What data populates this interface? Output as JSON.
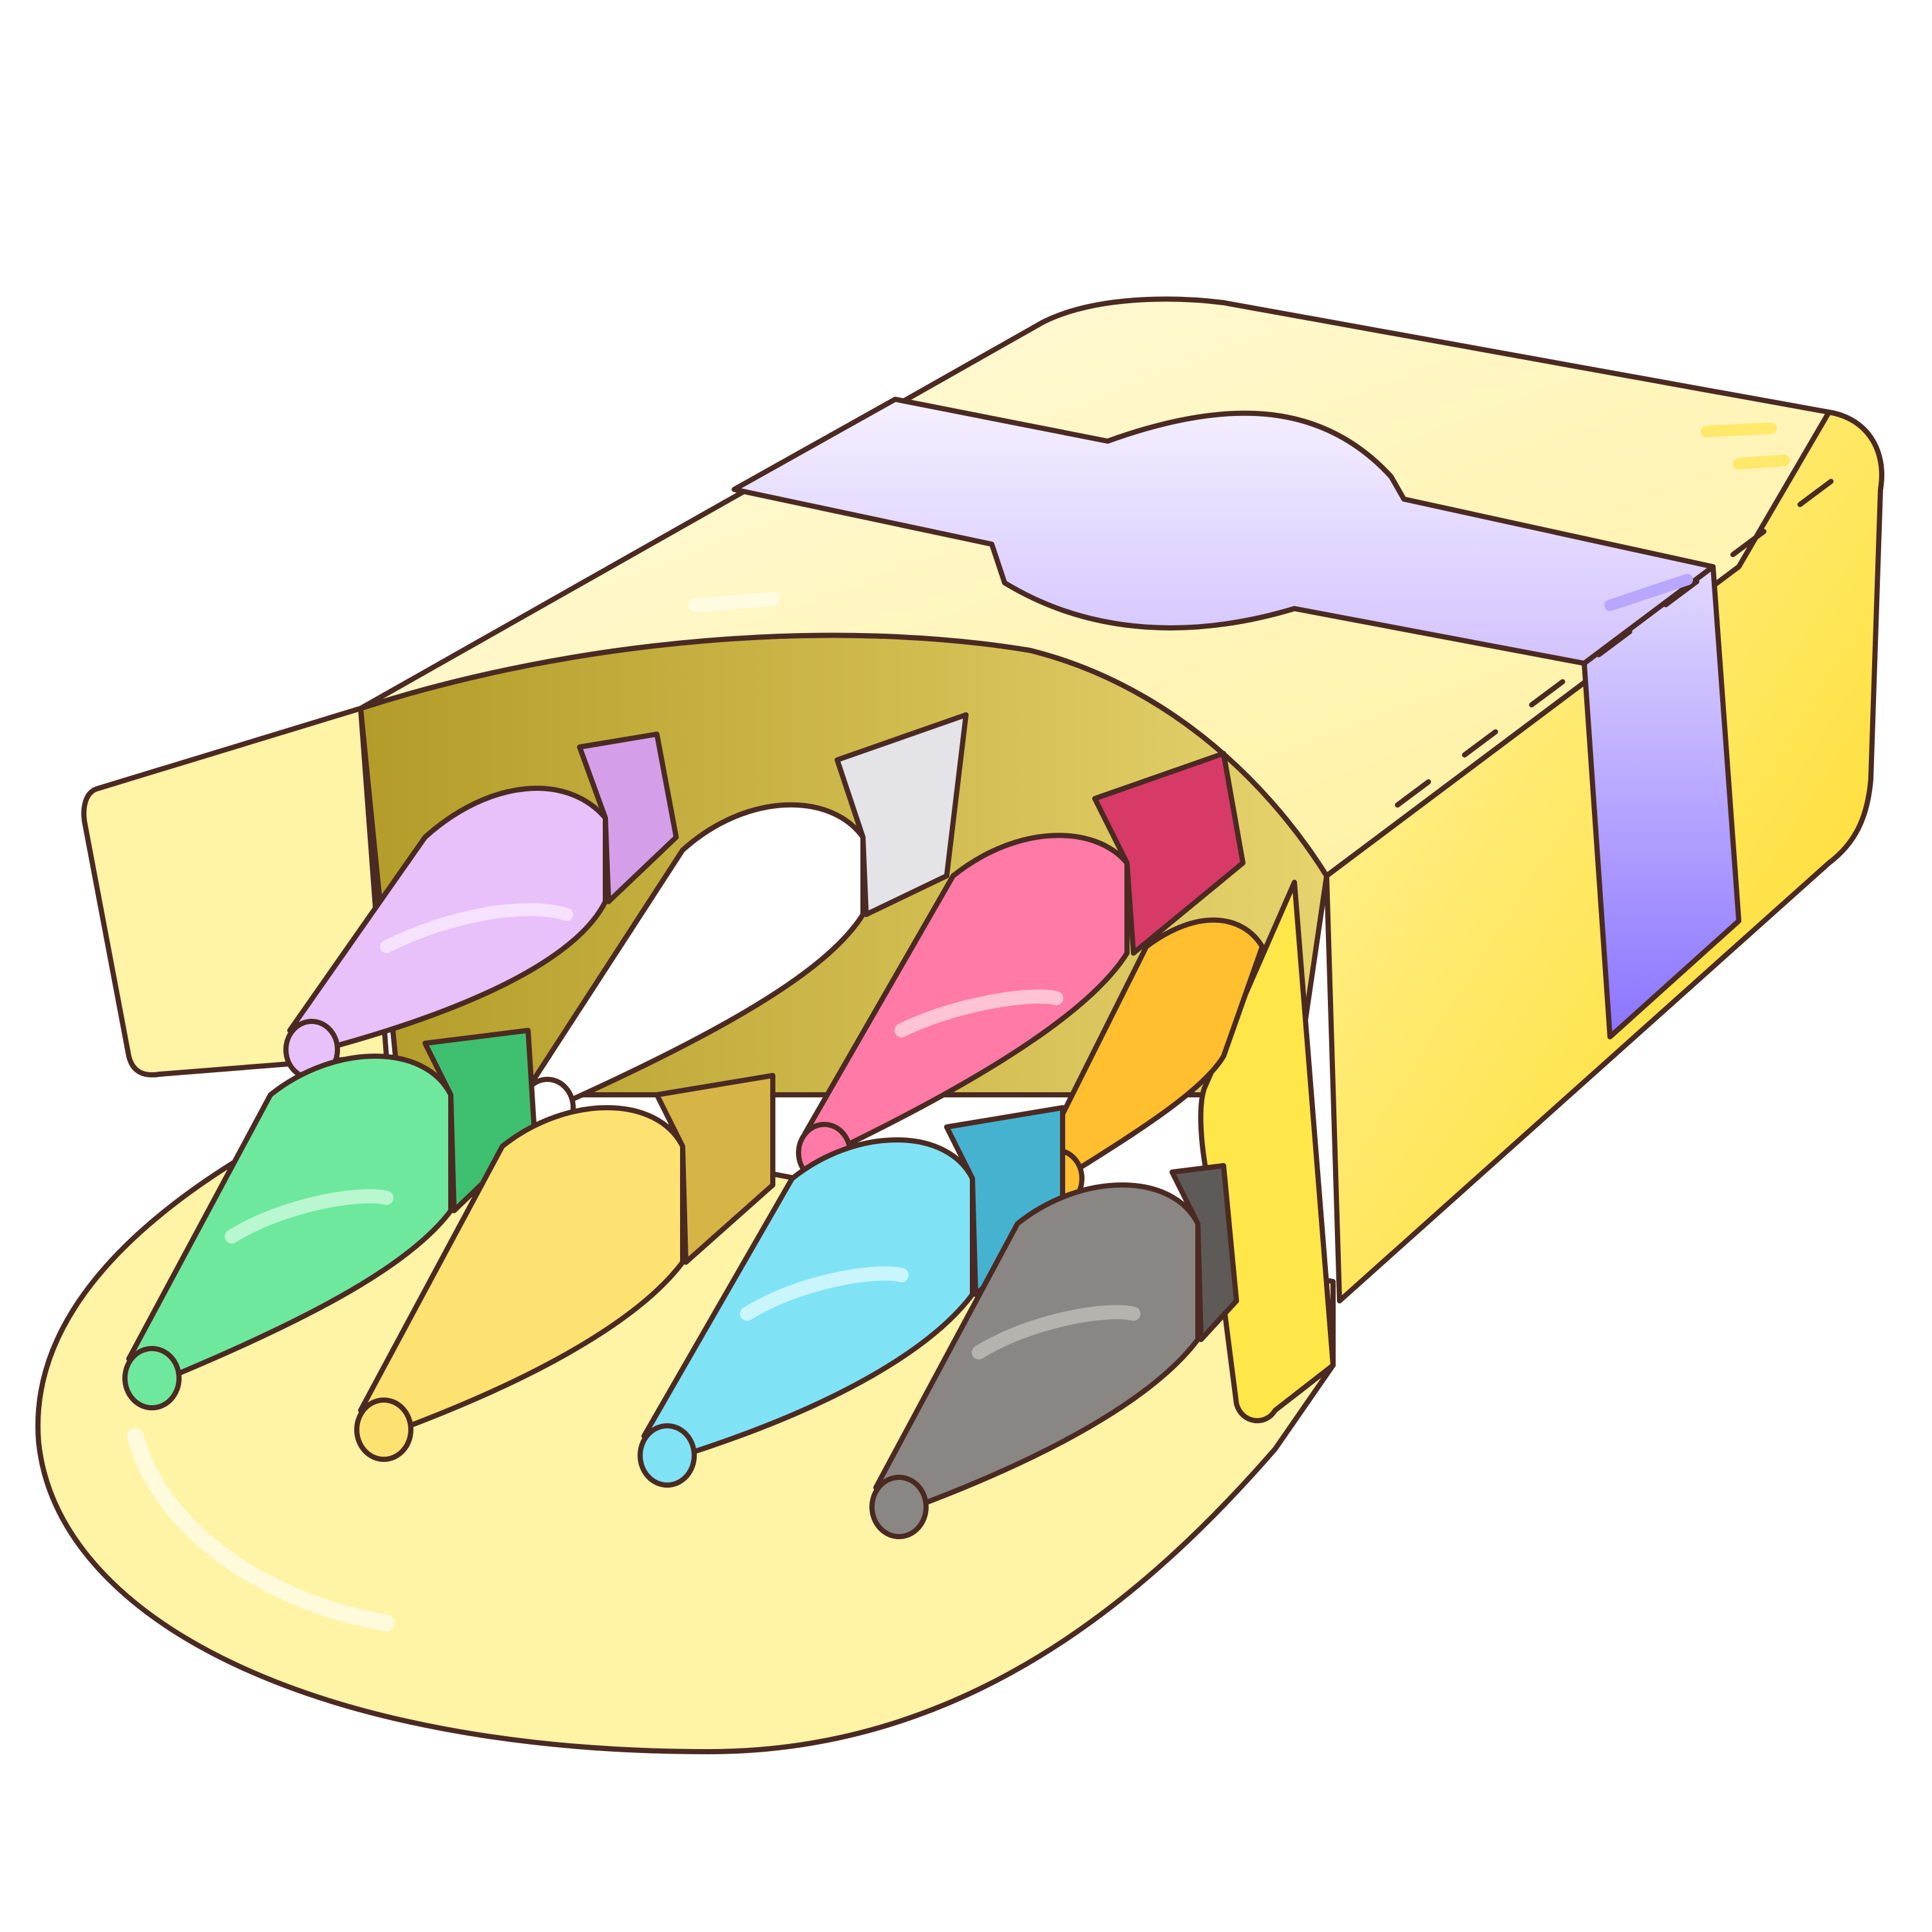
{
  "scene": {
    "subject": "crayon-box",
    "background": "#ffffff",
    "outline_color": "#4a2a22"
  },
  "box": {
    "front_color": "#fff3a6",
    "side_color": "#ffe22b",
    "interior_color": "#b8a12d",
    "band_color": "#d9c8ff",
    "band_side_color": "#9a86ff"
  },
  "crayons": [
    {
      "name": "lilac-crayon",
      "color": "#e8c0fa",
      "shade": "#b67ee0"
    },
    {
      "name": "white-crayon",
      "color": "#ffffff",
      "shade": "#cfcfd4"
    },
    {
      "name": "pink-crayon",
      "color": "#ff7aa6",
      "shade": "#b0163c"
    },
    {
      "name": "orange-crayon",
      "color": "#ffbf2e",
      "shade": "#df7f10"
    },
    {
      "name": "green-crayon",
      "color": "#6ee89d",
      "shade": "#2fb563"
    },
    {
      "name": "yellow-crayon",
      "color": "#fde271",
      "shade": "#c9a43a"
    },
    {
      "name": "blue-crayon",
      "color": "#7fe3f5",
      "shade": "#2fa8c7"
    },
    {
      "name": "gray-crayon",
      "color": "#8a8683",
      "shade": "#5a5654"
    }
  ]
}
